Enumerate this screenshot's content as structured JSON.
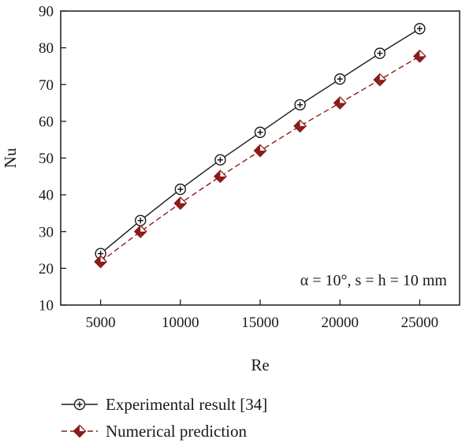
{
  "chart_data": {
    "type": "line",
    "xlabel": "Re",
    "ylabel": "Nu",
    "xlim": [
      2500,
      27500
    ],
    "ylim": [
      10,
      90
    ],
    "x_ticks": [
      5000,
      10000,
      15000,
      20000,
      25000
    ],
    "y_ticks": [
      10,
      20,
      30,
      40,
      50,
      60,
      70,
      80,
      90
    ],
    "grid": false,
    "annotation": "α = 10°, s = h = 10 mm",
    "legend_position": "bottom",
    "series": [
      {
        "name": "Experimental result [34]",
        "color": "#1a1a1a",
        "line_style": "solid",
        "marker": "circle-plus",
        "x": [
          5000,
          7500,
          10000,
          12500,
          15000,
          17500,
          20000,
          22500,
          25000
        ],
        "y": [
          24,
          33,
          41.5,
          49.5,
          57,
          64.5,
          71.5,
          78.5,
          85.2
        ]
      },
      {
        "name": "Numerical prediction",
        "color": "#8b1a1a",
        "line_style": "dashed",
        "marker": "half-filled-diamond",
        "x": [
          5000,
          7500,
          10000,
          12500,
          15000,
          17500,
          20000,
          22500,
          25000
        ],
        "y": [
          21.8,
          30,
          37.7,
          45,
          52,
          58.7,
          65,
          71.3,
          77.7
        ]
      }
    ]
  }
}
